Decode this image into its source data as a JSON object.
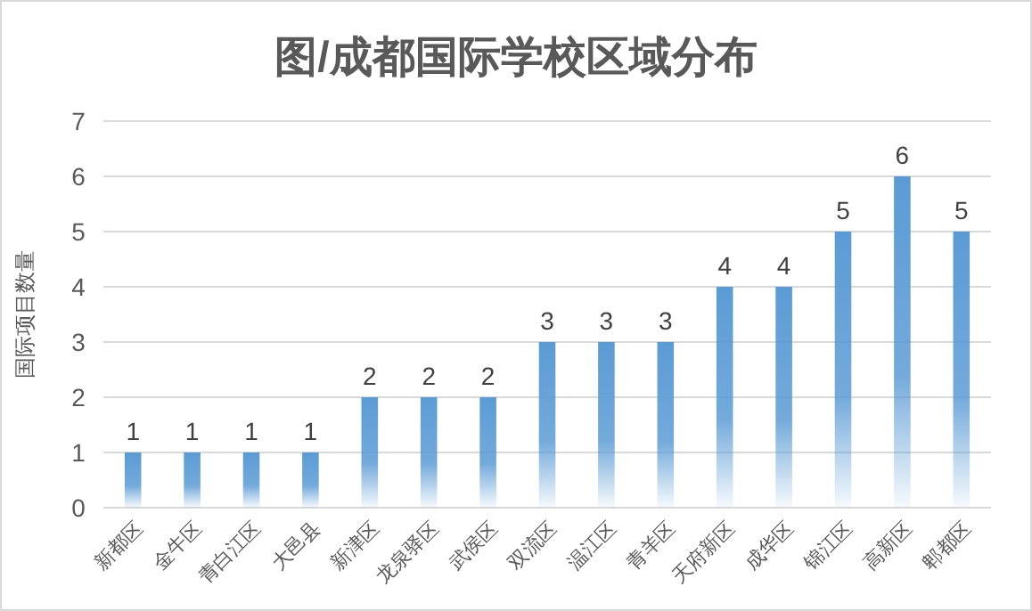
{
  "chart_data": {
    "type": "bar",
    "title": "图/成都国际学校区域分布",
    "ylabel": "国际项目数量",
    "categories": [
      "新都区",
      "金牛区",
      "青白江区",
      "大邑县",
      "新津区",
      "龙泉驿区",
      "武侯区",
      "双流区",
      "温江区",
      "青羊区",
      "天府新区",
      "成华区",
      "锦江区",
      "高新区",
      "郫都区"
    ],
    "values": [
      1,
      1,
      1,
      1,
      2,
      2,
      2,
      3,
      3,
      3,
      4,
      4,
      5,
      6,
      5
    ],
    "color": "#5b9bd5",
    "ylim": [
      0,
      7
    ],
    "yticks": [
      0,
      1,
      2,
      3,
      4,
      5,
      6,
      7
    ],
    "grid": "y",
    "data_labels": true
  }
}
